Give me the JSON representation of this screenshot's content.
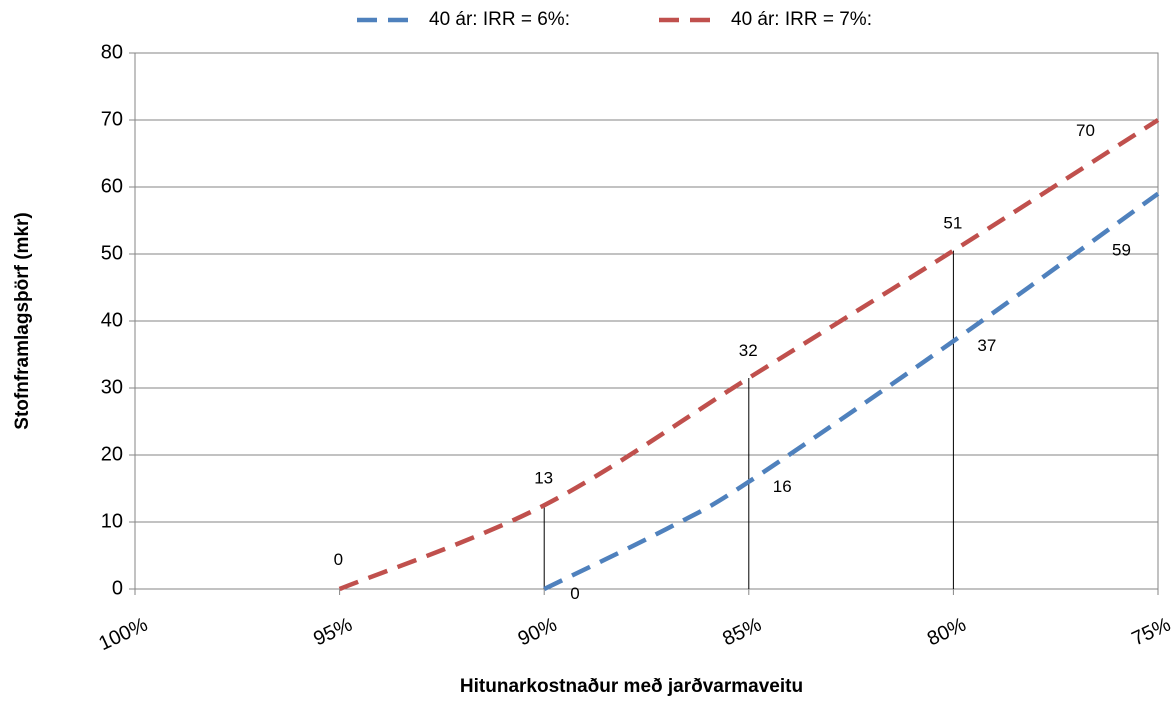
{
  "chart_data": {
    "type": "line",
    "xlabel": "Hitunarkostnaður  með jarðvarmaveitu",
    "ylabel": "Stofnframlagsþörf (mkr)",
    "categories": [
      "100%",
      "95%",
      "90%",
      "85%",
      "80%",
      "75%"
    ],
    "x_values": [
      100,
      95,
      90,
      85,
      80,
      75
    ],
    "ylim": [
      0,
      80
    ],
    "yticks": [
      0,
      10,
      20,
      30,
      40,
      50,
      60,
      70,
      80
    ],
    "grid": true,
    "legend_position": "top",
    "series": [
      {
        "name": "40 ár: IRR = 6%:",
        "color": "#4f81bd",
        "x": [
          90,
          87,
          85,
          80,
          75
        ],
        "y": [
          0,
          9,
          16,
          37,
          59
        ],
        "labels": [
          {
            "x": 90,
            "y": 0,
            "text": "0"
          },
          {
            "x": 85,
            "y": 16,
            "text": "16"
          },
          {
            "x": 80,
            "y": 37,
            "text": "37"
          },
          {
            "x": 75,
            "y": 59,
            "text": "59"
          }
        ]
      },
      {
        "name": "40 ár: IRR = 7%:",
        "color": "#c0504d",
        "x": [
          95,
          90,
          85,
          80,
          75
        ],
        "y": [
          0,
          12.5,
          31.5,
          50.5,
          70
        ],
        "labels": [
          {
            "x": 95,
            "y": 0,
            "text": "0"
          },
          {
            "x": 90,
            "y": 12.5,
            "text": "13"
          },
          {
            "x": 85,
            "y": 31.5,
            "text": "32"
          },
          {
            "x": 80,
            "y": 50.5,
            "text": "51"
          },
          {
            "x": 75,
            "y": 70,
            "text": "70"
          }
        ]
      }
    ],
    "drop_lines": [
      {
        "x": 90,
        "y": 12.5
      },
      {
        "x": 85,
        "y": 31.5
      },
      {
        "x": 80,
        "y": 50.5
      }
    ]
  }
}
